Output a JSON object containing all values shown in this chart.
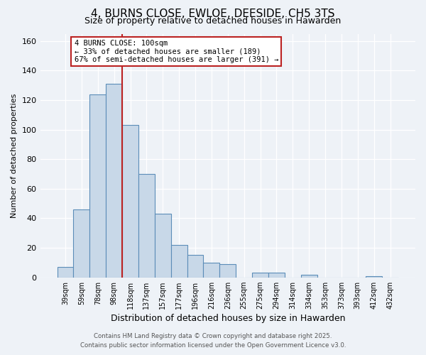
{
  "title": "4, BURNS CLOSE, EWLOE, DEESIDE, CH5 3TS",
  "subtitle": "Size of property relative to detached houses in Hawarden",
  "xlabel": "Distribution of detached houses by size in Hawarden",
  "ylabel": "Number of detached properties",
  "bar_labels": [
    "39sqm",
    "59sqm",
    "78sqm",
    "98sqm",
    "118sqm",
    "137sqm",
    "157sqm",
    "177sqm",
    "196sqm",
    "216sqm",
    "236sqm",
    "255sqm",
    "275sqm",
    "294sqm",
    "314sqm",
    "334sqm",
    "353sqm",
    "373sqm",
    "393sqm",
    "412sqm",
    "432sqm"
  ],
  "bar_values": [
    7,
    46,
    124,
    131,
    103,
    70,
    43,
    22,
    15,
    10,
    9,
    0,
    3,
    3,
    0,
    2,
    0,
    0,
    0,
    1,
    0
  ],
  "bar_color": "#c8d8e8",
  "bar_edge_color": "#5b8db8",
  "marker_line_color": "#bb2222",
  "annotation_box_color": "#ffffff",
  "annotation_box_edge": "#bb2222",
  "ylim": [
    0,
    165
  ],
  "background_color": "#eef2f7",
  "grid_color": "#ffffff",
  "footer1": "Contains HM Land Registry data © Crown copyright and database right 2025.",
  "footer2": "Contains public sector information licensed under the Open Government Licence v3.0.",
  "marker_label": "4 BURNS CLOSE: 100sqm",
  "annotation_line1": "← 33% of detached houses are smaller (189)",
  "annotation_line2": "67% of semi-detached houses are larger (391) →"
}
